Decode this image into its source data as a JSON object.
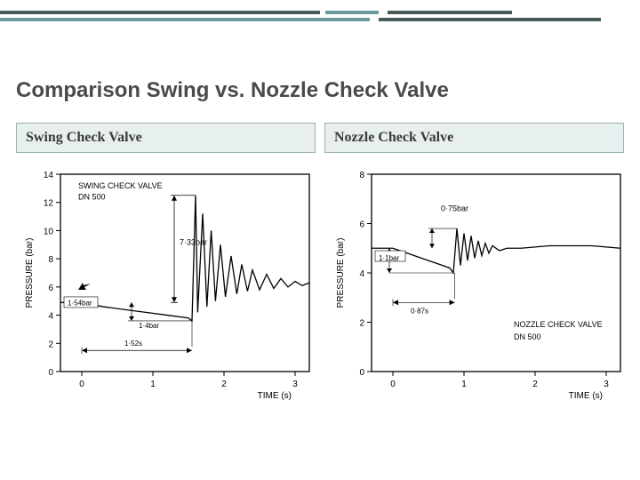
{
  "header_bars": {
    "dark_color": "#4a5a5a",
    "teal_color": "#6b9b9b"
  },
  "title": "Comparison Swing vs. Nozzle Check Valve",
  "col_left": "Swing Check Valve",
  "col_right": "Nozzle Check Valve",
  "chart_left": {
    "type": "line",
    "xlabel": "TIME (s)",
    "ylabel": "PRESSURE (bar)",
    "ylim": [
      0,
      14
    ],
    "xlim": [
      -0.3,
      3.2
    ],
    "ytick_step": 2,
    "xtick_step": 1,
    "label_fontsize": 10,
    "title_in_plot_l1": "SWING CHECK VALVE",
    "title_in_plot_l2": "DN 500",
    "peak_label": "7·33bar",
    "base_label": "1·54bar",
    "delta_label": "1·4bar",
    "time_label": "1·52s",
    "stroke": "#000000",
    "grid": "#000000",
    "bg": "#ffffff",
    "points": [
      [
        -0.3,
        4.9
      ],
      [
        0,
        4.9
      ],
      [
        0.3,
        4.6
      ],
      [
        0.6,
        4.4
      ],
      [
        0.9,
        4.2
      ],
      [
        1.2,
        4.0
      ],
      [
        1.5,
        3.8
      ],
      [
        1.55,
        3.6
      ],
      [
        1.6,
        12.5
      ],
      [
        1.63,
        4.2
      ],
      [
        1.7,
        11.2
      ],
      [
        1.76,
        4.6
      ],
      [
        1.82,
        10.0
      ],
      [
        1.88,
        5.0
      ],
      [
        1.95,
        9.0
      ],
      [
        2.02,
        5.3
      ],
      [
        2.1,
        8.2
      ],
      [
        2.18,
        5.5
      ],
      [
        2.25,
        7.6
      ],
      [
        2.33,
        5.7
      ],
      [
        2.4,
        7.2
      ],
      [
        2.5,
        5.8
      ],
      [
        2.6,
        6.9
      ],
      [
        2.7,
        5.9
      ],
      [
        2.8,
        6.6
      ],
      [
        2.9,
        6.0
      ],
      [
        3.0,
        6.4
      ],
      [
        3.1,
        6.1
      ],
      [
        3.2,
        6.3
      ]
    ]
  },
  "chart_right": {
    "type": "line",
    "xlabel": "TIME (s)",
    "ylabel": "PRESSURE (bar)",
    "ylim": [
      0,
      8
    ],
    "xlim": [
      -0.3,
      3.2
    ],
    "ytick_step": 2,
    "xtick_step": 1,
    "label_fontsize": 10,
    "title_in_plot_l1": "NOZZLE CHECK VALVE",
    "title_in_plot_l2": "DN 500",
    "peak_label": "0·75bar",
    "base_label": "1·1bar",
    "time_label": "0·87s",
    "stroke": "#000000",
    "bg": "#ffffff",
    "points": [
      [
        -0.3,
        5.0
      ],
      [
        0,
        5.0
      ],
      [
        0.2,
        4.8
      ],
      [
        0.4,
        4.6
      ],
      [
        0.6,
        4.4
      ],
      [
        0.8,
        4.2
      ],
      [
        0.85,
        4.0
      ],
      [
        0.9,
        5.8
      ],
      [
        0.95,
        4.3
      ],
      [
        1.0,
        5.6
      ],
      [
        1.05,
        4.5
      ],
      [
        1.1,
        5.5
      ],
      [
        1.15,
        4.6
      ],
      [
        1.2,
        5.3
      ],
      [
        1.25,
        4.7
      ],
      [
        1.3,
        5.2
      ],
      [
        1.35,
        4.8
      ],
      [
        1.4,
        5.1
      ],
      [
        1.5,
        4.9
      ],
      [
        1.6,
        5.0
      ],
      [
        1.8,
        5.0
      ],
      [
        2.0,
        5.05
      ],
      [
        2.2,
        5.1
      ],
      [
        2.4,
        5.1
      ],
      [
        2.6,
        5.1
      ],
      [
        2.8,
        5.1
      ],
      [
        3.0,
        5.05
      ],
      [
        3.2,
        5.0
      ]
    ]
  }
}
